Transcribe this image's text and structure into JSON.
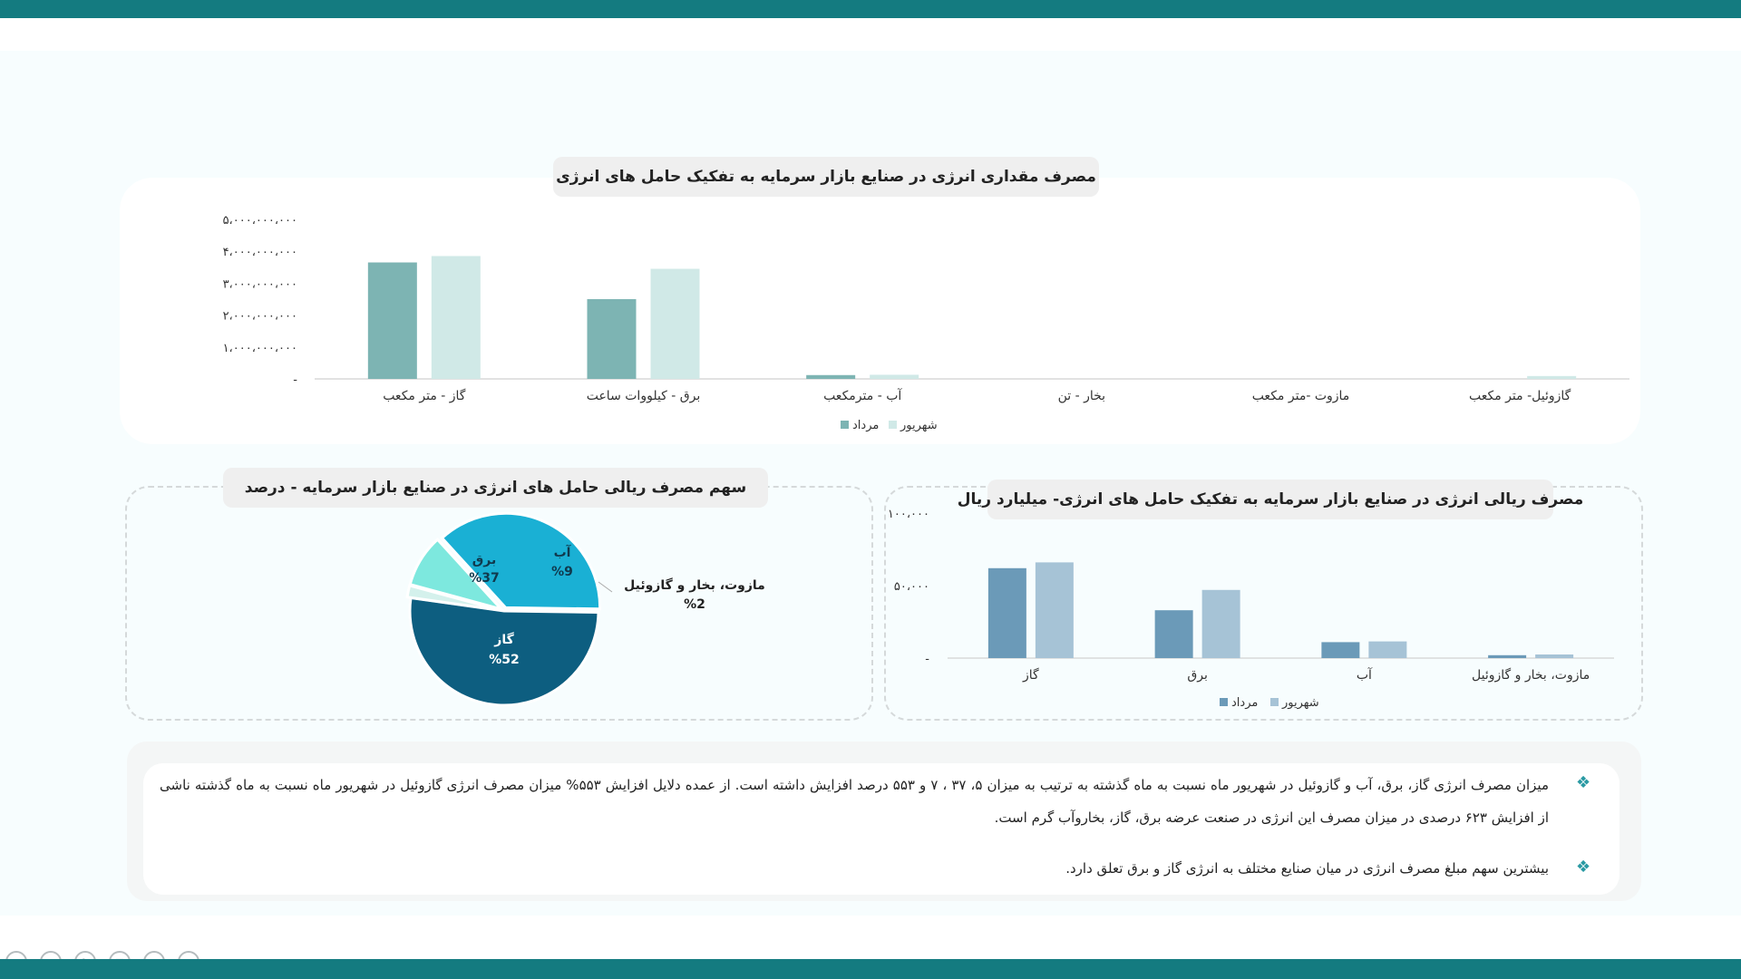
{
  "controls": [
    "back-icon",
    "forward-icon",
    "pen-icon",
    "slides-icon",
    "zoom-icon",
    "more-icon"
  ],
  "chart1": {
    "title": "مصرف مقداری انرژی در صنایع بازار سرمایه به تفکیک حامل های انرژی",
    "yticks": [
      "۵،۰۰۰،۰۰۰،۰۰۰",
      "۴،۰۰۰،۰۰۰،۰۰۰",
      "۳،۰۰۰،۰۰۰،۰۰۰",
      "۲،۰۰۰،۰۰۰،۰۰۰",
      "۱،۰۰۰،۰۰۰،۰۰۰",
      "-"
    ],
    "legend": {
      "mordad": "مرداد",
      "shahrivar": "شهریور"
    }
  },
  "chart2": {
    "title": "سهم مصرف ریالی حامل های انرژی در صنایع بازار سرمایه - درصد",
    "labels": {
      "gas_name": "گاز",
      "gas_pct": "%52",
      "elec_name": "برق",
      "elec_pct": "%37",
      "water_name": "آب",
      "water_pct": "%9",
      "other_name": "مازوت، بخار و گازوئیل",
      "other_pct": "%2"
    }
  },
  "chart3": {
    "title": "مصرف ریالی انرژی در صنایع بازار سرمایه به تفکیک حامل های انرژی- میلیارد ریال",
    "yticks": [
      "۱۰۰،۰۰۰",
      "۵۰،۰۰۰",
      "-"
    ],
    "legend": {
      "mordad": "مرداد",
      "shahrivar": "شهریور"
    }
  },
  "text": {
    "bullet1": "میزان مصرف انرژی گاز، برق، آب و گازوئیل در شهریور ماه نسبت به ماه گذشته به ترتیب به میزان ۵، ۳۷ ، ۷ و ۵۵۳ درصد افزایش داشته است. از عمده دلایل افزایش ۵۵۳% میزان مصرف انرژی گازوئیل در شهریور ماه نسبت به ماه گذشته ناشی از افزایش ۶۲۳ درصدی در میزان مصرف این انرژی در صنعت عرضه برق، گاز، بخاروآب گرم است.",
    "bullet2": "بیشترین سهم مبلغ مصرف انرژی در میان صنایع مختلف به انرژی گاز و برق تعلق دارد."
  },
  "chart_data": [
    {
      "type": "bar",
      "title": "مصرف مقداری انرژی در صنایع بازار سرمایه به تفکیک حامل های انرژی",
      "categories": [
        "گاز - متر مکعب",
        "برق - کیلووات ساعت",
        "آب - مترمکعب",
        "بخار - تن",
        "مازوت -متر مکعب",
        "گازوئیل- متر مکعب"
      ],
      "series": [
        {
          "name": "مرداد",
          "values": [
            3650000000,
            2500000000,
            120000000,
            0,
            0,
            0
          ],
          "color": "#7db4b3"
        },
        {
          "name": "شهریور",
          "values": [
            3850000000,
            3450000000,
            130000000,
            0,
            0,
            90000000
          ],
          "color": "#d0e9e7"
        }
      ],
      "ylim": [
        0,
        5000000000
      ],
      "legend": "bottom"
    },
    {
      "type": "pie",
      "title": "سهم مصرف ریالی حامل های انرژی در صنایع بازار سرمایه - درصد",
      "categories": [
        "گاز",
        "برق",
        "آب",
        "مازوت، بخار و گازوئیل"
      ],
      "values": [
        52,
        37,
        9,
        2
      ],
      "colors": [
        "#0d5e80",
        "#1ab0d4",
        "#7de8de",
        "#d4f1ec"
      ]
    },
    {
      "type": "bar",
      "title": "مصرف ریالی انرژی در صنایع بازار سرمایه به تفکیک حامل های انرژی- میلیارد ریال",
      "categories": [
        "گاز",
        "برق",
        "آب",
        "مازوت، بخار و گازوئیل"
      ],
      "series": [
        {
          "name": "مرداد",
          "values": [
            62000,
            33000,
            11000,
            2000
          ],
          "color": "#6b9ab8"
        },
        {
          "name": "شهریور",
          "values": [
            66000,
            47000,
            11500,
            2500
          ],
          "color": "#a6c3d6"
        }
      ],
      "ylim": [
        0,
        100000
      ],
      "legend": "bottom"
    }
  ]
}
